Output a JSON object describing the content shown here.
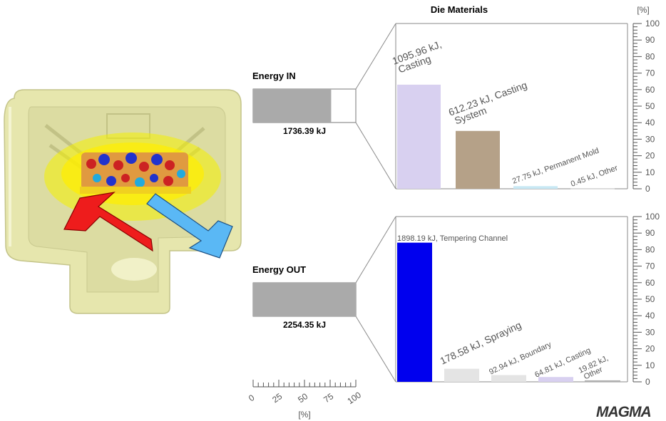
{
  "header": {
    "title": "Die Materials",
    "unit": "[%]"
  },
  "energy_in": {
    "label": "Energy IN",
    "total": "1736.39 kJ",
    "fill_fraction": 0.76
  },
  "energy_out": {
    "label": "Energy OUT",
    "total": "2254.35 kJ",
    "fill_fraction": 1.0
  },
  "scale": {
    "ticks": [
      "0",
      "25",
      "50",
      "75",
      "100"
    ],
    "unit": "[%]"
  },
  "logo": {
    "text": "MAGMA"
  },
  "colors": {
    "casting": "#d8d0f0",
    "casting_system": "#b5a188",
    "permanent_mold": "#c8e8f4",
    "other": "#e8e8e8",
    "tempering_channel": "#0000ee",
    "spraying": "#e4e4e4",
    "boundary": "#e4e4e4",
    "casting_out": "#d8d0f0",
    "other_out": "#b0b0b0",
    "summary_bar": "#aaaaaa",
    "arrow_in": "#ee1c1c",
    "arrow_out": "#5ab8f5",
    "die": "#e8e8b0"
  },
  "chart_data": [
    {
      "type": "bar",
      "title": "Die Materials",
      "ylabel": "[%]",
      "ylim": [
        0,
        100
      ],
      "yticks": [
        0,
        10,
        20,
        30,
        40,
        50,
        60,
        70,
        80,
        90,
        100
      ],
      "categories": [
        "Casting",
        "Casting System",
        "Permanent Mold",
        "Other"
      ],
      "values": [
        63,
        35,
        1.6,
        0.1
      ],
      "labels": [
        "1095.96 kJ, Casting",
        "612.23 kJ, Casting System",
        "27.75 kJ, Permanent Mold",
        "0.45 kJ, Other"
      ]
    },
    {
      "type": "bar",
      "title": "",
      "ylabel": "[%]",
      "ylim": [
        0,
        100
      ],
      "yticks": [
        0,
        10,
        20,
        30,
        40,
        50,
        60,
        70,
        80,
        90,
        100
      ],
      "categories": [
        "Tempering Channel",
        "Spraying",
        "Boundary",
        "Casting",
        "Other"
      ],
      "values": [
        84.2,
        7.9,
        4.1,
        2.9,
        0.9
      ],
      "labels": [
        "1898.19 kJ, Tempering Channel",
        "178.58 kJ, Spraying",
        "92.94 kJ, Boundary",
        "64.81 kJ, Casting",
        "19.82 kJ, Other"
      ]
    }
  ]
}
